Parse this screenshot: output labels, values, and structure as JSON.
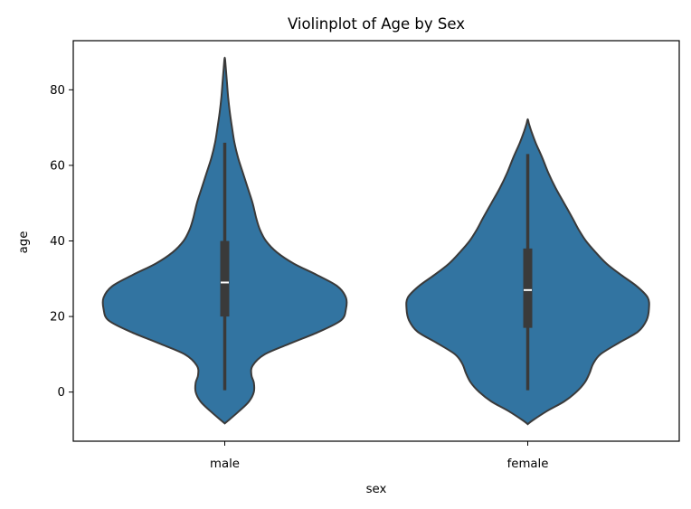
{
  "chart_data": {
    "type": "violin",
    "title": "Violinplot of Age by Sex",
    "xlabel": "sex",
    "ylabel": "age",
    "ylim": [
      -13,
      93
    ],
    "yticks": [
      0,
      20,
      40,
      60,
      80
    ],
    "categories": [
      "male",
      "female"
    ],
    "grid": false,
    "legend": "none",
    "colors": {
      "fill": "#3274a1",
      "edge": "#3a3a3a",
      "box": "#3a3a3a",
      "median": "#ffffff"
    },
    "violins": [
      {
        "category": "male",
        "whisker_low": 0.5,
        "q1": 20,
        "median": 29,
        "q3": 40,
        "whisker_high": 66,
        "density": [
          [
            -8.3,
            0.0
          ],
          [
            -7.5,
            0.03
          ],
          [
            -5,
            0.12
          ],
          [
            -2.5,
            0.2
          ],
          [
            0,
            0.24
          ],
          [
            2.5,
            0.24
          ],
          [
            4.5,
            0.22
          ],
          [
            7,
            0.23
          ],
          [
            10,
            0.33
          ],
          [
            13,
            0.55
          ],
          [
            16,
            0.78
          ],
          [
            19,
            0.96
          ],
          [
            22,
            1.0
          ],
          [
            25,
            1.0
          ],
          [
            28,
            0.93
          ],
          [
            31,
            0.76
          ],
          [
            34,
            0.57
          ],
          [
            37,
            0.43
          ],
          [
            40,
            0.34
          ],
          [
            43,
            0.29
          ],
          [
            46,
            0.26
          ],
          [
            50,
            0.23
          ],
          [
            54,
            0.19
          ],
          [
            58,
            0.15
          ],
          [
            62,
            0.11
          ],
          [
            66,
            0.08
          ],
          [
            70,
            0.06
          ],
          [
            74,
            0.042
          ],
          [
            78,
            0.028
          ],
          [
            82,
            0.018
          ],
          [
            86,
            0.008
          ],
          [
            88.5,
            0.0
          ]
        ]
      },
      {
        "category": "female",
        "whisker_low": 0.5,
        "q1": 17,
        "median": 27,
        "q3": 38,
        "whisker_high": 63,
        "density": [
          [
            -8.5,
            0.0
          ],
          [
            -7.5,
            0.04
          ],
          [
            -5,
            0.16
          ],
          [
            -2.5,
            0.3
          ],
          [
            0,
            0.4
          ],
          [
            2.5,
            0.47
          ],
          [
            5,
            0.51
          ],
          [
            7.5,
            0.54
          ],
          [
            10,
            0.6
          ],
          [
            13,
            0.75
          ],
          [
            16,
            0.91
          ],
          [
            19,
            0.98
          ],
          [
            22,
            1.0
          ],
          [
            25,
            0.99
          ],
          [
            28,
            0.9
          ],
          [
            31,
            0.77
          ],
          [
            34,
            0.65
          ],
          [
            37,
            0.56
          ],
          [
            40,
            0.48
          ],
          [
            43,
            0.42
          ],
          [
            46,
            0.37
          ],
          [
            50,
            0.3
          ],
          [
            54,
            0.23
          ],
          [
            58,
            0.17
          ],
          [
            62,
            0.12
          ],
          [
            66,
            0.065
          ],
          [
            69,
            0.03
          ],
          [
            71,
            0.01
          ],
          [
            72.2,
            0.0
          ]
        ]
      }
    ]
  }
}
